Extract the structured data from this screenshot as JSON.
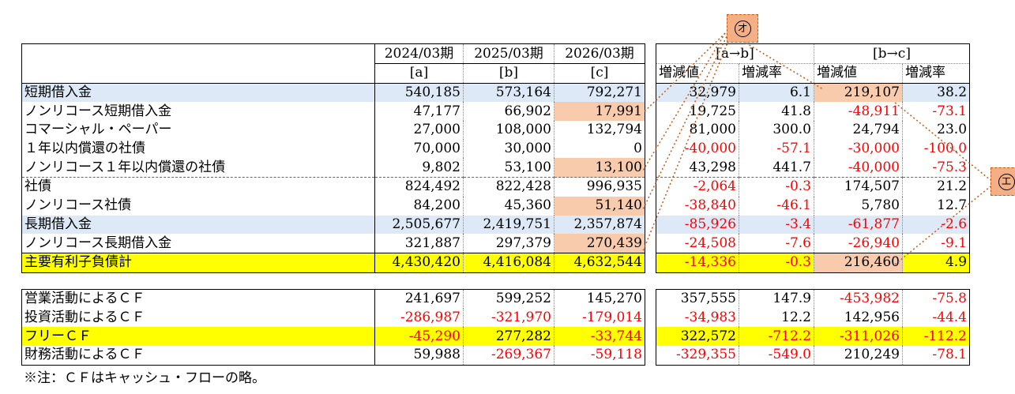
{
  "left_table": {
    "period_headers": [
      "2024/03期",
      "2025/03期",
      "2026/03期"
    ],
    "letter_headers": [
      "[a]",
      "[b]",
      "[c]"
    ],
    "debt_rows": [
      {
        "label": "短期借入金",
        "values": [
          "540,185",
          "573,164",
          "792,271"
        ]
      },
      {
        "label": "ノンリコース短期借入金",
        "values": [
          "47,177",
          "66,902",
          "17,991"
        ]
      },
      {
        "label": "コマーシャル・ペーパー",
        "values": [
          "27,000",
          "108,000",
          "132,794"
        ]
      },
      {
        "label": "１年以内償還の社債",
        "values": [
          "70,000",
          "30,000",
          "0"
        ]
      },
      {
        "label": "ノンリコース１年以内償還の社債",
        "values": [
          "9,802",
          "53,100",
          "13,100"
        ]
      },
      {
        "label": "社債",
        "values": [
          "824,492",
          "822,428",
          "996,935"
        ]
      },
      {
        "label": "ノンリコース社債",
        "values": [
          "84,200",
          "45,360",
          "51,140"
        ]
      },
      {
        "label": "長期借入金",
        "values": [
          "2,505,677",
          "2,419,751",
          "2,357,874"
        ]
      },
      {
        "label": "ノンリコース長期借入金",
        "values": [
          "321,887",
          "297,379",
          "270,439"
        ]
      },
      {
        "label": "主要有利子負債計",
        "values": [
          "4,430,420",
          "4,416,084",
          "4,632,544"
        ]
      }
    ],
    "cf_rows": [
      {
        "label": "営業活動によるＣＦ",
        "values": [
          "241,697",
          "599,252",
          "145,270"
        ]
      },
      {
        "label": "投資活動によるＣＦ",
        "values": [
          "-286,987",
          "-321,970",
          "-179,014"
        ]
      },
      {
        "label": "フリーＣＦ",
        "values": [
          "-45,290",
          "277,282",
          "-33,744"
        ]
      },
      {
        "label": "財務活動によるＣＦ",
        "values": [
          "59,988",
          "-269,367",
          "-59,118"
        ]
      }
    ]
  },
  "right_table": {
    "group_headers": [
      "[a→b]",
      "[b→c]"
    ],
    "sub_headers": [
      "増減値",
      "増減率",
      "増減値",
      "増減率"
    ],
    "debt_rows": [
      [
        "32,979",
        "6.1",
        "219,107",
        "38.2"
      ],
      [
        "19,725",
        "41.8",
        "-48,911",
        "-73.1"
      ],
      [
        "81,000",
        "300.0",
        "24,794",
        "23.0"
      ],
      [
        "-40,000",
        "-57.1",
        "-30,000",
        "-100.0"
      ],
      [
        "43,298",
        "441.7",
        "-40,000",
        "-75.3"
      ],
      [
        "-2,064",
        "-0.3",
        "174,507",
        "21.2"
      ],
      [
        "-38,840",
        "-46.1",
        "5,780",
        "12.7"
      ],
      [
        "-85,926",
        "-3.4",
        "-61,877",
        "-2.6"
      ],
      [
        "-24,508",
        "-7.6",
        "-26,940",
        "-9.1"
      ],
      [
        "-14,336",
        "-0.3",
        "216,460",
        "4.9"
      ]
    ],
    "cf_rows": [
      [
        "357,555",
        "147.9",
        "-453,982",
        "-75.8"
      ],
      [
        "-34,983",
        "12.2",
        "142,956",
        "-44.4"
      ],
      [
        "322,572",
        "-712.2",
        "-311,026",
        "-112.2"
      ],
      [
        "-329,355",
        "-549.0",
        "210,249",
        "-78.1"
      ]
    ]
  },
  "markers": {
    "o": "オ",
    "e": "エ"
  },
  "note": "※注：ＣＦはキャッシュ・フローの略。",
  "colors": {
    "blue_row": "#dde9f6",
    "yellow_row": "#ffff00",
    "highlight": "#f8cbad",
    "marker": "#f4b084",
    "negative": "#ff0000",
    "connector": "#c55a11"
  }
}
